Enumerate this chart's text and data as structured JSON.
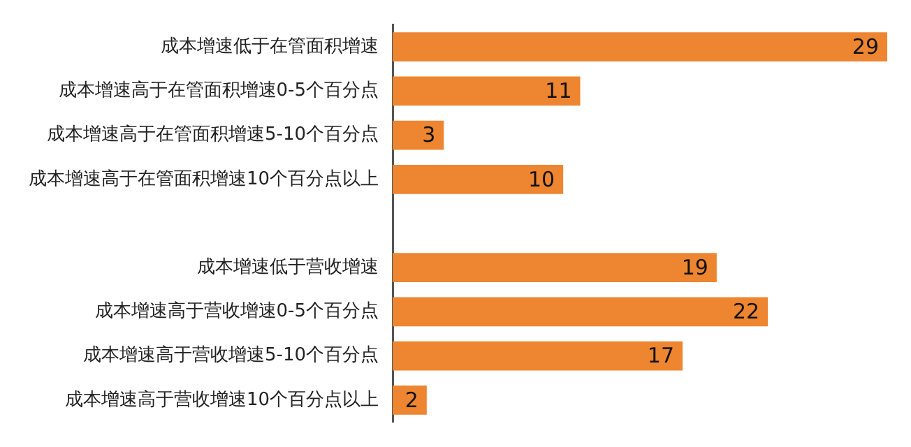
{
  "chart_data": {
    "type": "bar",
    "orientation": "horizontal",
    "categories": [
      "成本增速低于在管面积增速",
      "成本增速高于在管面积增速0-5个百分点",
      "成本增速高于在管面积增速5-10个百分点",
      "成本增速高于在管面积增速10个百分点以上",
      null,
      "成本增速低于营收增速",
      "成本增速高于营收增速0-5个百分点",
      "成本增速高于营收增速5-10个百分点",
      "成本增速高于营收增速10个百分点以上"
    ],
    "values": [
      29,
      11,
      3,
      10,
      null,
      19,
      22,
      17,
      2
    ],
    "color": "#ee8530",
    "xlim": [
      0,
      29
    ],
    "data_labels": true,
    "legend": false,
    "tick_labels": "y"
  }
}
